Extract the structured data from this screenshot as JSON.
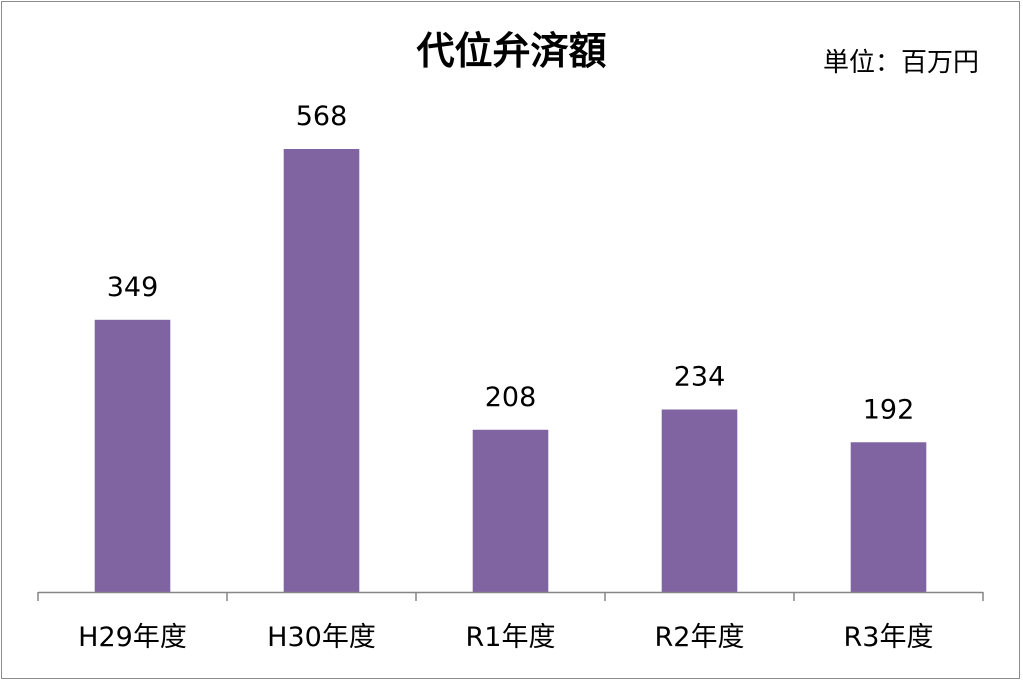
{
  "chart_data": {
    "type": "bar",
    "title": "代位弁済額",
    "unit": "単位：百万円",
    "categories": [
      "H29年度",
      "H30年度",
      "R1年度",
      "R2年度",
      "R3年度"
    ],
    "values": [
      349,
      568,
      208,
      234,
      192
    ],
    "data_labels": [
      "349",
      "568",
      "208",
      "234",
      "192"
    ],
    "ylim": [
      0,
      600
    ],
    "grid": false,
    "legend": "none",
    "colors": {
      "bar": "#8064A2",
      "axis": "#868686",
      "frame": "#8c8c8c",
      "text": "#000000"
    }
  }
}
